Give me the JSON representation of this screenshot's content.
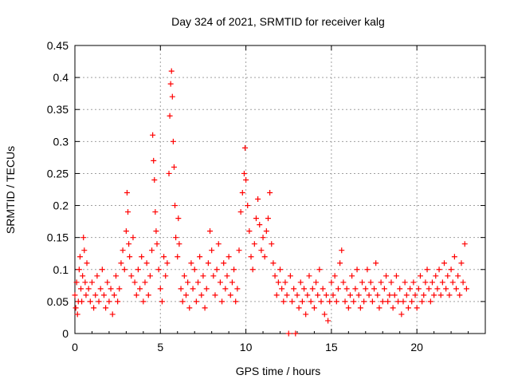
{
  "chart_data": {
    "type": "scatter",
    "title": "Day 324 of 2021, SRMTID for receiver kalg",
    "xlabel": "GPS time / hours",
    "ylabel": "SRMTID / TECUs",
    "xlim": [
      0,
      24
    ],
    "ylim": [
      0,
      0.45
    ],
    "xticks": [
      0,
      5,
      10,
      15,
      20
    ],
    "xtick_labels": [
      "0",
      "5",
      "10",
      "15",
      "20"
    ],
    "yticks": [
      0,
      0.05,
      0.1,
      0.15,
      0.2,
      0.25,
      0.3,
      0.35,
      0.4,
      0.45
    ],
    "ytick_labels": [
      "0",
      "0.05",
      "0.1",
      "0.15",
      "0.2",
      "0.25",
      "0.3",
      "0.35",
      "0.4",
      "0.45"
    ],
    "grid": true,
    "marker": "+",
    "color": "#ff0000",
    "series": [
      {
        "name": "SRMTID",
        "points": [
          [
            0.0,
            0.06
          ],
          [
            0.05,
            0.04
          ],
          [
            0.1,
            0.08
          ],
          [
            0.15,
            0.03
          ],
          [
            0.2,
            0.05
          ],
          [
            0.25,
            0.1
          ],
          [
            0.3,
            0.12
          ],
          [
            0.35,
            0.07
          ],
          [
            0.4,
            0.05
          ],
          [
            0.45,
            0.09
          ],
          [
            0.5,
            0.15
          ],
          [
            0.55,
            0.13
          ],
          [
            0.6,
            0.08
          ],
          [
            0.65,
            0.06
          ],
          [
            0.7,
            0.11
          ],
          [
            0.8,
            0.07
          ],
          [
            0.9,
            0.05
          ],
          [
            1.0,
            0.08
          ],
          [
            1.1,
            0.04
          ],
          [
            1.2,
            0.06
          ],
          [
            1.3,
            0.09
          ],
          [
            1.4,
            0.05
          ],
          [
            1.5,
            0.07
          ],
          [
            1.6,
            0.1
          ],
          [
            1.7,
            0.06
          ],
          [
            1.8,
            0.04
          ],
          [
            1.9,
            0.08
          ],
          [
            2.0,
            0.05
          ],
          [
            2.1,
            0.07
          ],
          [
            2.2,
            0.03
          ],
          [
            2.3,
            0.06
          ],
          [
            2.4,
            0.09
          ],
          [
            2.5,
            0.05
          ],
          [
            2.6,
            0.07
          ],
          [
            2.7,
            0.11
          ],
          [
            2.8,
            0.13
          ],
          [
            2.9,
            0.1
          ],
          [
            3.0,
            0.16
          ],
          [
            3.05,
            0.22
          ],
          [
            3.1,
            0.19
          ],
          [
            3.15,
            0.14
          ],
          [
            3.2,
            0.12
          ],
          [
            3.3,
            0.09
          ],
          [
            3.4,
            0.15
          ],
          [
            3.5,
            0.08
          ],
          [
            3.6,
            0.06
          ],
          [
            3.7,
            0.1
          ],
          [
            3.8,
            0.07
          ],
          [
            3.9,
            0.12
          ],
          [
            4.0,
            0.05
          ],
          [
            4.1,
            0.08
          ],
          [
            4.2,
            0.11
          ],
          [
            4.3,
            0.06
          ],
          [
            4.4,
            0.09
          ],
          [
            4.5,
            0.13
          ],
          [
            4.55,
            0.31
          ],
          [
            4.6,
            0.27
          ],
          [
            4.65,
            0.24
          ],
          [
            4.7,
            0.19
          ],
          [
            4.75,
            0.16
          ],
          [
            4.8,
            0.14
          ],
          [
            4.9,
            0.1
          ],
          [
            5.0,
            0.07
          ],
          [
            5.1,
            0.05
          ],
          [
            5.2,
            0.12
          ],
          [
            5.3,
            0.09
          ],
          [
            5.4,
            0.11
          ],
          [
            5.5,
            0.25
          ],
          [
            5.55,
            0.34
          ],
          [
            5.6,
            0.39
          ],
          [
            5.65,
            0.41
          ],
          [
            5.7,
            0.37
          ],
          [
            5.75,
            0.3
          ],
          [
            5.8,
            0.26
          ],
          [
            5.85,
            0.2
          ],
          [
            5.9,
            0.15
          ],
          [
            6.0,
            0.12
          ],
          [
            6.05,
            0.18
          ],
          [
            6.1,
            0.14
          ],
          [
            6.2,
            0.07
          ],
          [
            6.3,
            0.05
          ],
          [
            6.4,
            0.09
          ],
          [
            6.5,
            0.06
          ],
          [
            6.6,
            0.08
          ],
          [
            6.7,
            0.04
          ],
          [
            6.8,
            0.11
          ],
          [
            6.9,
            0.07
          ],
          [
            7.0,
            0.1
          ],
          [
            7.1,
            0.05
          ],
          [
            7.2,
            0.08
          ],
          [
            7.3,
            0.12
          ],
          [
            7.4,
            0.06
          ],
          [
            7.5,
            0.09
          ],
          [
            7.6,
            0.04
          ],
          [
            7.7,
            0.07
          ],
          [
            7.8,
            0.11
          ],
          [
            7.9,
            0.16
          ],
          [
            8.0,
            0.13
          ],
          [
            8.1,
            0.09
          ],
          [
            8.2,
            0.06
          ],
          [
            8.3,
            0.1
          ],
          [
            8.4,
            0.14
          ],
          [
            8.5,
            0.08
          ],
          [
            8.6,
            0.05
          ],
          [
            8.7,
            0.11
          ],
          [
            8.8,
            0.07
          ],
          [
            8.9,
            0.09
          ],
          [
            9.0,
            0.12
          ],
          [
            9.1,
            0.06
          ],
          [
            9.2,
            0.08
          ],
          [
            9.3,
            0.1
          ],
          [
            9.4,
            0.05
          ],
          [
            9.5,
            0.07
          ],
          [
            9.6,
            0.13
          ],
          [
            9.7,
            0.19
          ],
          [
            9.8,
            0.22
          ],
          [
            9.9,
            0.25
          ],
          [
            9.95,
            0.29
          ],
          [
            10.0,
            0.24
          ],
          [
            10.1,
            0.2
          ],
          [
            10.2,
            0.16
          ],
          [
            10.3,
            0.12
          ],
          [
            10.4,
            0.1
          ],
          [
            10.5,
            0.14
          ],
          [
            10.6,
            0.18
          ],
          [
            10.7,
            0.21
          ],
          [
            10.8,
            0.17
          ],
          [
            10.9,
            0.13
          ],
          [
            11.0,
            0.15
          ],
          [
            11.1,
            0.12
          ],
          [
            11.2,
            0.16
          ],
          [
            11.3,
            0.18
          ],
          [
            11.4,
            0.22
          ],
          [
            11.5,
            0.14
          ],
          [
            11.6,
            0.11
          ],
          [
            11.7,
            0.09
          ],
          [
            11.8,
            0.06
          ],
          [
            11.9,
            0.08
          ],
          [
            12.0,
            0.1
          ],
          [
            12.1,
            0.07
          ],
          [
            12.2,
            0.05
          ],
          [
            12.3,
            0.08
          ],
          [
            12.4,
            0.06
          ],
          [
            12.5,
            0.0
          ],
          [
            12.6,
            0.09
          ],
          [
            12.7,
            0.05
          ],
          [
            12.8,
            0.07
          ],
          [
            12.9,
            0.0
          ],
          [
            13.0,
            0.06
          ],
          [
            13.1,
            0.04
          ],
          [
            13.2,
            0.08
          ],
          [
            13.3,
            0.05
          ],
          [
            13.4,
            0.07
          ],
          [
            13.5,
            0.03
          ],
          [
            13.6,
            0.06
          ],
          [
            13.7,
            0.09
          ],
          [
            13.8,
            0.05
          ],
          [
            13.9,
            0.07
          ],
          [
            14.0,
            0.04
          ],
          [
            14.1,
            0.08
          ],
          [
            14.2,
            0.06
          ],
          [
            14.3,
            0.1
          ],
          [
            14.4,
            0.05
          ],
          [
            14.5,
            0.07
          ],
          [
            14.6,
            0.03
          ],
          [
            14.7,
            0.06
          ],
          [
            14.8,
            0.02
          ],
          [
            14.9,
            0.05
          ],
          [
            15.0,
            0.08
          ],
          [
            15.1,
            0.06
          ],
          [
            15.2,
            0.09
          ],
          [
            15.3,
            0.05
          ],
          [
            15.4,
            0.07
          ],
          [
            15.5,
            0.11
          ],
          [
            15.6,
            0.13
          ],
          [
            15.7,
            0.08
          ],
          [
            15.8,
            0.05
          ],
          [
            15.9,
            0.07
          ],
          [
            16.0,
            0.04
          ],
          [
            16.1,
            0.06
          ],
          [
            16.2,
            0.09
          ],
          [
            16.3,
            0.05
          ],
          [
            16.4,
            0.07
          ],
          [
            16.5,
            0.1
          ],
          [
            16.6,
            0.06
          ],
          [
            16.7,
            0.04
          ],
          [
            16.8,
            0.08
          ],
          [
            16.9,
            0.05
          ],
          [
            17.0,
            0.07
          ],
          [
            17.1,
            0.1
          ],
          [
            17.2,
            0.06
          ],
          [
            17.3,
            0.08
          ],
          [
            17.4,
            0.05
          ],
          [
            17.5,
            0.07
          ],
          [
            17.6,
            0.11
          ],
          [
            17.7,
            0.06
          ],
          [
            17.8,
            0.04
          ],
          [
            17.9,
            0.08
          ],
          [
            18.0,
            0.05
          ],
          [
            18.1,
            0.07
          ],
          [
            18.2,
            0.09
          ],
          [
            18.3,
            0.05
          ],
          [
            18.4,
            0.06
          ],
          [
            18.5,
            0.08
          ],
          [
            18.6,
            0.04
          ],
          [
            18.7,
            0.06
          ],
          [
            18.8,
            0.09
          ],
          [
            18.9,
            0.05
          ],
          [
            19.0,
            0.07
          ],
          [
            19.1,
            0.03
          ],
          [
            19.2,
            0.05
          ],
          [
            19.3,
            0.08
          ],
          [
            19.4,
            0.06
          ],
          [
            19.5,
            0.04
          ],
          [
            19.6,
            0.07
          ],
          [
            19.7,
            0.05
          ],
          [
            19.8,
            0.08
          ],
          [
            19.9,
            0.06
          ],
          [
            20.0,
            0.04
          ],
          [
            20.1,
            0.07
          ],
          [
            20.2,
            0.09
          ],
          [
            20.3,
            0.05
          ],
          [
            20.4,
            0.06
          ],
          [
            20.5,
            0.08
          ],
          [
            20.6,
            0.1
          ],
          [
            20.7,
            0.07
          ],
          [
            20.8,
            0.05
          ],
          [
            20.9,
            0.08
          ],
          [
            21.0,
            0.06
          ],
          [
            21.1,
            0.09
          ],
          [
            21.2,
            0.07
          ],
          [
            21.3,
            0.1
          ],
          [
            21.4,
            0.06
          ],
          [
            21.5,
            0.08
          ],
          [
            21.6,
            0.11
          ],
          [
            21.7,
            0.07
          ],
          [
            21.8,
            0.09
          ],
          [
            21.9,
            0.06
          ],
          [
            22.0,
            0.1
          ],
          [
            22.1,
            0.08
          ],
          [
            22.2,
            0.12
          ],
          [
            22.3,
            0.07
          ],
          [
            22.4,
            0.09
          ],
          [
            22.5,
            0.06
          ],
          [
            22.6,
            0.11
          ],
          [
            22.7,
            0.08
          ],
          [
            22.8,
            0.14
          ],
          [
            22.9,
            0.07
          ]
        ]
      }
    ]
  }
}
